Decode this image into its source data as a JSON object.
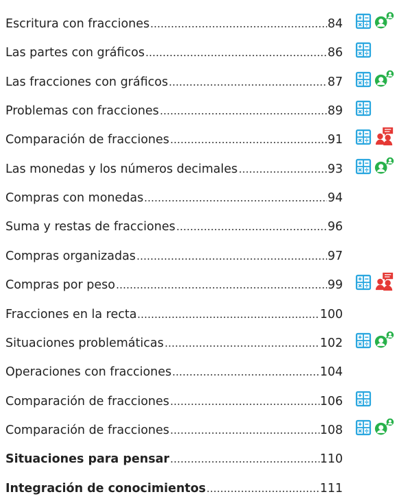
{
  "toc": {
    "entries": [
      {
        "title": "Escritura con fracciones",
        "page": 84
      },
      {
        "title": "Las partes con gráficos",
        "page": 86
      },
      {
        "title": "Las fracciones con gráficos",
        "page": 87
      },
      {
        "title": "Problemas con fracciones",
        "page": 89
      },
      {
        "title": "Comparación de fracciones",
        "page": 91
      },
      {
        "title": "Las monedas y los números decimales",
        "page": 93
      },
      {
        "title": "Compras con monedas",
        "page": 94
      },
      {
        "title": "Suma y restas de fracciones",
        "page": 96
      },
      {
        "title": "Compras organizadas",
        "page": 97
      },
      {
        "title": "Compras por peso",
        "page": 99
      },
      {
        "title": "Fracciones en la recta",
        "page": 100
      },
      {
        "title": "Situaciones problemáticas",
        "page": 102
      },
      {
        "title": "Operaciones con fracciones",
        "page": 104
      },
      {
        "title": "Comparación de fracciones",
        "page": 106
      },
      {
        "title": "Comparación de fracciones",
        "page": 108
      },
      {
        "title": "Situaciones para pensar",
        "page": 110
      },
      {
        "title": "Integración de conocimientos",
        "page": 111
      }
    ]
  }
}
